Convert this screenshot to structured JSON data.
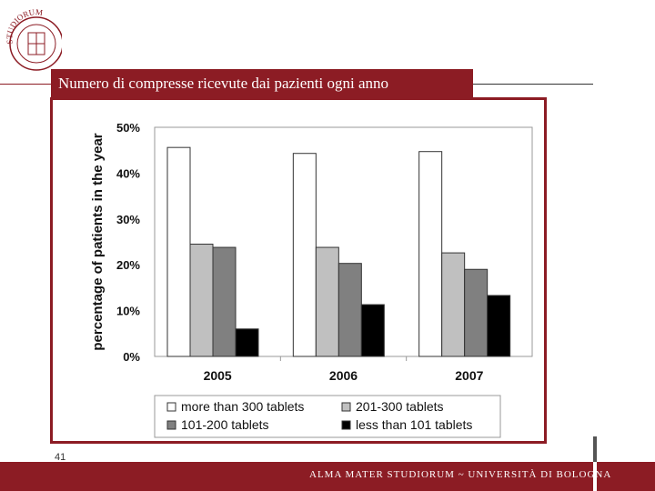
{
  "slide": {
    "title": "Numero di compresse ricevute dai pazienti ogni anno",
    "page_number": "41",
    "footer": "ALMA MATER STUDIORUM ~ UNIVERSITÀ DI BOLOGNA",
    "seal_text": "STUDIORUM",
    "brand_color": "#8c1c24"
  },
  "chart_data": {
    "type": "bar",
    "title": "",
    "xlabel": "",
    "ylabel": "percentage of patients in the year",
    "categories": [
      "2005",
      "2006",
      "2007"
    ],
    "ylim": [
      0,
      50
    ],
    "yticks": [
      "0%",
      "10%",
      "20%",
      "30%",
      "40%",
      "50%"
    ],
    "grid": false,
    "legend_position": "bottom",
    "series": [
      {
        "name": "more than 300 tablets",
        "values": [
          45.6,
          44.3,
          44.7
        ],
        "color": "#ffffff"
      },
      {
        "name": "201-300 tablets",
        "values": [
          24.5,
          23.8,
          22.6
        ],
        "color": "#c0c0c0"
      },
      {
        "name": "101-200 tablets",
        "values": [
          23.8,
          20.3,
          19.0
        ],
        "color": "#808080"
      },
      {
        "name": "less than 101 tablets",
        "values": [
          6.0,
          11.3,
          13.3
        ],
        "color": "#000000"
      }
    ]
  }
}
